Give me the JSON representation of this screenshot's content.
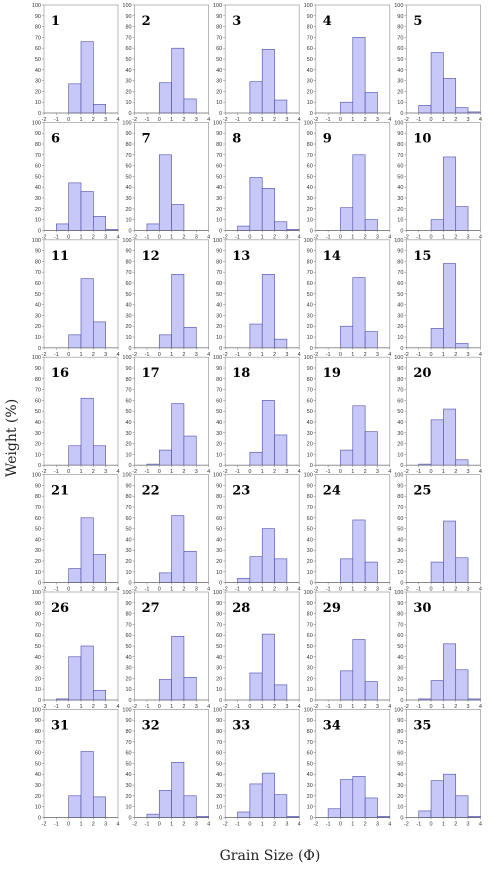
{
  "chart_data": {
    "type": "bar",
    "layout": "small-multiples grid, 7 rows x 5 columns",
    "xlabel": "Grain Size (Φ)",
    "ylabel": "Weight (%)",
    "xlim": [
      -2,
      4
    ],
    "ylim": [
      0,
      100
    ],
    "x_ticks": [
      "-2",
      "-1",
      "0",
      "1",
      "2",
      "3",
      "4"
    ],
    "y_ticks": [
      "0",
      "10",
      "20",
      "30",
      "40",
      "50",
      "60",
      "70",
      "80",
      "90",
      "100"
    ],
    "bin_edges": [
      -2,
      -1,
      0,
      1,
      2,
      3,
      4
    ],
    "bar_color": "#c8c8f8",
    "bar_edge_color": "#4a4aa8",
    "grid": false,
    "panels": [
      {
        "label": "1",
        "values": [
          0,
          0,
          27,
          66,
          8,
          0
        ]
      },
      {
        "label": "2",
        "values": [
          0,
          0,
          28,
          60,
          13,
          0
        ]
      },
      {
        "label": "3",
        "values": [
          0,
          0,
          29,
          59,
          12,
          0
        ]
      },
      {
        "label": "4",
        "values": [
          0,
          0,
          10,
          70,
          19,
          0
        ]
      },
      {
        "label": "5",
        "values": [
          0,
          7,
          56,
          32,
          5,
          1
        ]
      },
      {
        "label": "6",
        "values": [
          0,
          6,
          44,
          36,
          13,
          1
        ]
      },
      {
        "label": "7",
        "values": [
          0,
          6,
          70,
          24,
          0,
          0
        ]
      },
      {
        "label": "8",
        "values": [
          0,
          4,
          49,
          39,
          8,
          1
        ]
      },
      {
        "label": "9",
        "values": [
          0,
          0,
          21,
          70,
          10,
          0
        ]
      },
      {
        "label": "10",
        "values": [
          0,
          0,
          10,
          68,
          22,
          0
        ]
      },
      {
        "label": "11",
        "values": [
          0,
          0,
          12,
          64,
          24,
          0
        ]
      },
      {
        "label": "12",
        "values": [
          0,
          0,
          12,
          68,
          19,
          0
        ]
      },
      {
        "label": "13",
        "values": [
          0,
          0,
          22,
          68,
          8,
          0
        ]
      },
      {
        "label": "14",
        "values": [
          0,
          0,
          20,
          65,
          15,
          0
        ]
      },
      {
        "label": "15",
        "values": [
          0,
          0,
          18,
          78,
          4,
          0
        ]
      },
      {
        "label": "16",
        "values": [
          0,
          0,
          18,
          62,
          18,
          0
        ]
      },
      {
        "label": "17",
        "values": [
          0,
          1,
          14,
          57,
          27,
          0
        ]
      },
      {
        "label": "18",
        "values": [
          0,
          0,
          12,
          60,
          28,
          0
        ]
      },
      {
        "label": "19",
        "values": [
          0,
          0,
          14,
          55,
          31,
          0
        ]
      },
      {
        "label": "20",
        "values": [
          0,
          1,
          42,
          52,
          5,
          0
        ]
      },
      {
        "label": "21",
        "values": [
          0,
          0,
          13,
          60,
          26,
          0
        ]
      },
      {
        "label": "22",
        "values": [
          0,
          0,
          9,
          62,
          29,
          0
        ]
      },
      {
        "label": "23",
        "values": [
          0,
          4,
          24,
          50,
          22,
          0
        ]
      },
      {
        "label": "24",
        "values": [
          0,
          0,
          22,
          58,
          19,
          0
        ]
      },
      {
        "label": "25",
        "values": [
          0,
          0,
          19,
          57,
          23,
          0
        ]
      },
      {
        "label": "26",
        "values": [
          0,
          1,
          40,
          50,
          9,
          0
        ]
      },
      {
        "label": "27",
        "values": [
          0,
          0,
          19,
          59,
          21,
          0
        ]
      },
      {
        "label": "28",
        "values": [
          0,
          0,
          25,
          61,
          14,
          0
        ]
      },
      {
        "label": "29",
        "values": [
          0,
          0,
          27,
          56,
          17,
          0
        ]
      },
      {
        "label": "30",
        "values": [
          0,
          1,
          18,
          52,
          28,
          1
        ]
      },
      {
        "label": "31",
        "values": [
          0,
          0,
          20,
          61,
          19,
          0
        ]
      },
      {
        "label": "32",
        "values": [
          0,
          3,
          25,
          51,
          20,
          1
        ]
      },
      {
        "label": "33",
        "values": [
          0,
          5,
          31,
          41,
          21,
          1
        ]
      },
      {
        "label": "34",
        "values": [
          0,
          8,
          35,
          38,
          18,
          1
        ]
      },
      {
        "label": "35",
        "values": [
          0,
          6,
          34,
          40,
          20,
          1
        ]
      }
    ]
  }
}
